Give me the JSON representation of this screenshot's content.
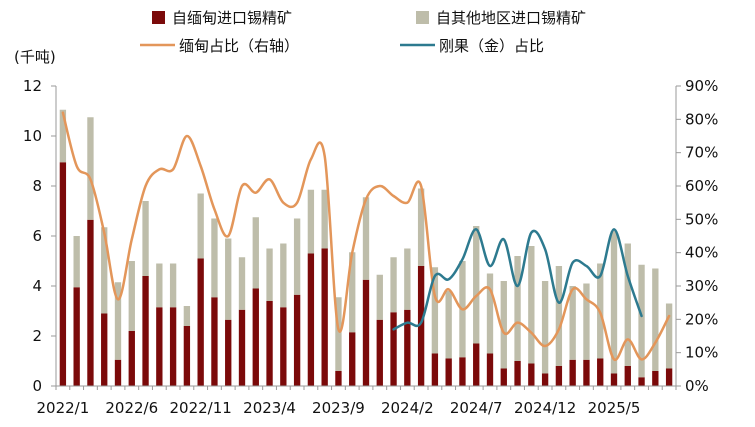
{
  "chart_data": {
    "type": "bar",
    "ylabel_left": "(千吨)",
    "ylim_left": [
      0,
      12
    ],
    "ylim_right": [
      0,
      0.9
    ],
    "y_ticks_left": [
      "0",
      "2",
      "4",
      "6",
      "8",
      "10",
      "12"
    ],
    "y_ticks_right": [
      "0%",
      "10%",
      "20%",
      "30%",
      "40%",
      "50%",
      "60%",
      "70%",
      "80%",
      "90%"
    ],
    "x_tick_labels": [
      "2022/1",
      "2022/6",
      "2022/11",
      "2023/4",
      "2023/9",
      "2024/2",
      "2024/7",
      "2024/12",
      "2025/5"
    ],
    "x_tick_indices": [
      0,
      5,
      10,
      15,
      20,
      25,
      30,
      35,
      40
    ],
    "legend_position": "top",
    "series": [
      {
        "name": "自缅甸进口锡精矿",
        "kind": "bar-stack",
        "color": "#7b0a0a",
        "values": [
          8.95,
          3.95,
          6.65,
          2.9,
          1.05,
          2.2,
          4.4,
          3.15,
          3.15,
          2.4,
          5.1,
          3.55,
          2.65,
          3.05,
          3.9,
          3.4,
          3.15,
          3.65,
          5.3,
          5.5,
          0.6,
          2.15,
          4.25,
          2.65,
          2.95,
          3.05,
          4.8,
          1.3,
          1.1,
          1.15,
          1.7,
          1.3,
          0.7,
          1.0,
          0.9,
          0.5,
          0.8,
          1.05,
          1.05,
          1.1,
          0.5,
          0.8,
          0.35,
          0.6,
          0.7
        ]
      },
      {
        "name": "自其他地区进口锡精矿",
        "kind": "bar-stack",
        "color": "#bebdaa",
        "values": [
          2.1,
          2.05,
          4.1,
          3.45,
          3.1,
          2.8,
          3.0,
          1.75,
          1.75,
          0.8,
          2.6,
          3.15,
          3.25,
          2.1,
          2.85,
          2.1,
          2.55,
          3.05,
          2.55,
          2.35,
          2.95,
          3.2,
          3.3,
          1.8,
          2.2,
          2.45,
          3.1,
          3.45,
          2.7,
          3.85,
          4.7,
          3.2,
          3.5,
          4.2,
          4.7,
          3.7,
          4.0,
          2.95,
          3.05,
          3.8,
          5.7,
          4.9,
          4.5,
          4.1,
          2.6
        ]
      },
      {
        "name": "缅甸占比（右轴）",
        "kind": "line",
        "axis": "right",
        "color": "#e3965a",
        "values": [
          0.82,
          0.66,
          0.62,
          0.46,
          0.26,
          0.44,
          0.6,
          0.65,
          0.65,
          0.75,
          0.66,
          0.53,
          0.45,
          0.6,
          0.58,
          0.62,
          0.55,
          0.55,
          0.68,
          0.69,
          0.17,
          0.4,
          0.56,
          0.6,
          0.57,
          0.55,
          0.6,
          0.27,
          0.29,
          0.23,
          0.27,
          0.29,
          0.16,
          0.19,
          0.16,
          0.12,
          0.17,
          0.29,
          0.26,
          0.22,
          0.08,
          0.14,
          0.08,
          0.13,
          0.21
        ]
      },
      {
        "name": "刚果（金）占比",
        "kind": "line",
        "axis": "right",
        "color": "#2d7a8f",
        "start_index": 24,
        "values": [
          0.17,
          0.19,
          0.19,
          0.33,
          0.32,
          0.38,
          0.47,
          0.36,
          0.44,
          0.3,
          0.46,
          0.41,
          0.25,
          0.37,
          0.36,
          0.33,
          0.47,
          0.33,
          0.21
        ]
      }
    ]
  }
}
